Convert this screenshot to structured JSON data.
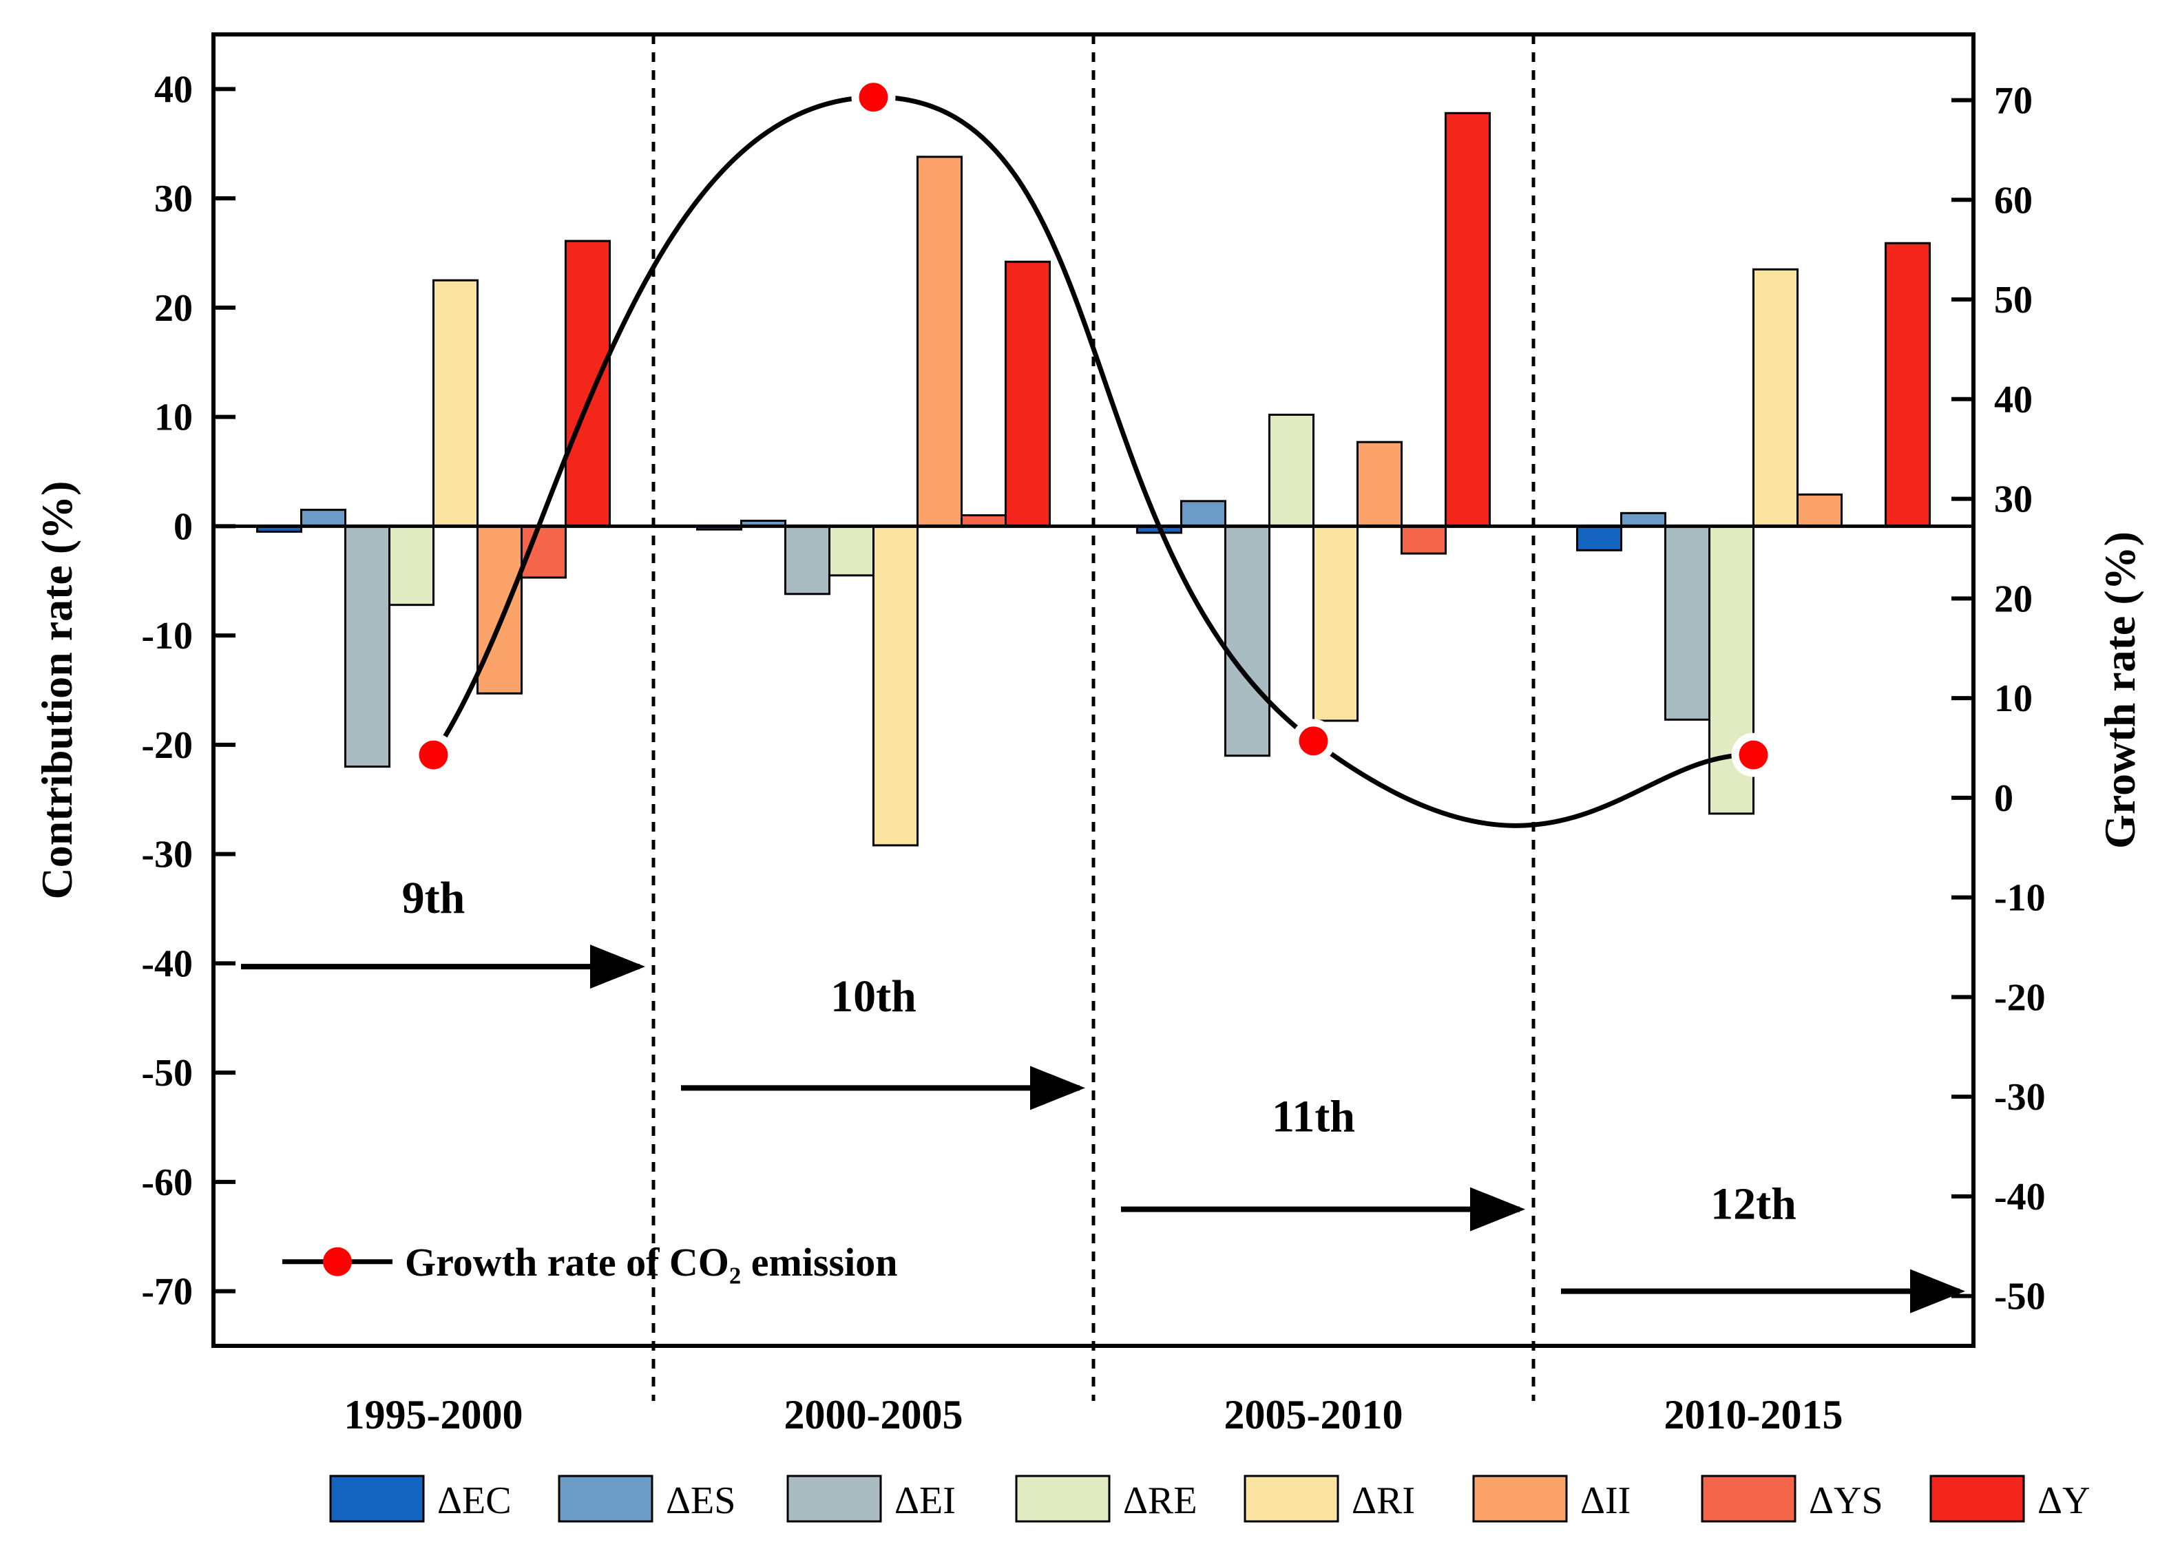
{
  "chart_data": {
    "type": "bar",
    "categories": [
      "1995-2000",
      "2000-2005",
      "2005-2010",
      "2010-2015"
    ],
    "series": [
      {
        "name": "ΔEC",
        "color": "#1565c0",
        "values": [
          -0.5,
          -0.3,
          -0.6,
          -2.2
        ]
      },
      {
        "name": "ΔES",
        "color": "#6a9cc7",
        "values": [
          1.5,
          0.5,
          2.3,
          1.2
        ]
      },
      {
        "name": "ΔEI",
        "color": "#a8bcc1",
        "values": [
          -22.0,
          -6.2,
          -21.0,
          -17.7
        ]
      },
      {
        "name": "ΔRE",
        "color": "#e1ebc2",
        "values": [
          -7.2,
          -4.5,
          10.2,
          -26.3
        ]
      },
      {
        "name": "ΔRI",
        "color": "#fbe3a0",
        "values": [
          22.5,
          -29.2,
          -17.8,
          23.5
        ]
      },
      {
        "name": "ΔII",
        "color": "#fca36a",
        "values": [
          -15.3,
          33.8,
          7.7,
          2.9
        ]
      },
      {
        "name": "ΔYS",
        "color": "#f5654a",
        "values": [
          -4.7,
          1.0,
          -2.5,
          0.0
        ]
      },
      {
        "name": "ΔY",
        "color": "#f4261c",
        "values": [
          26.1,
          24.2,
          37.8,
          25.9
        ]
      }
    ],
    "growth_line": {
      "name": "Growth rate of CO₂ emission",
      "values": [
        4.3,
        70.3,
        5.7,
        4.3
      ],
      "color": "#ff0000"
    },
    "ylabel": "Contribution rate (%)",
    "ylabel_right": "Growth rate (%)",
    "ylim": [
      -75,
      45
    ],
    "y_ticks": [
      "40",
      "30",
      "20",
      "10",
      "0",
      "-10",
      "-20",
      "-30",
      "-40",
      "-50",
      "-60",
      "-70"
    ],
    "ylim_right": [
      -55,
      76.6
    ],
    "y2_ticks": [
      "70",
      "60",
      "50",
      "40",
      "30",
      "20",
      "10",
      "0",
      "-10",
      "-20",
      "-30",
      "-40",
      "-50"
    ],
    "plan_labels": [
      "9th",
      "10th",
      "11th",
      "12th"
    ],
    "plan_label_levels": [
      -34,
      -43,
      -54,
      -62
    ],
    "plan_arrow_levels": [
      -40.3,
      -51.4,
      -62.5,
      -70
    ]
  }
}
